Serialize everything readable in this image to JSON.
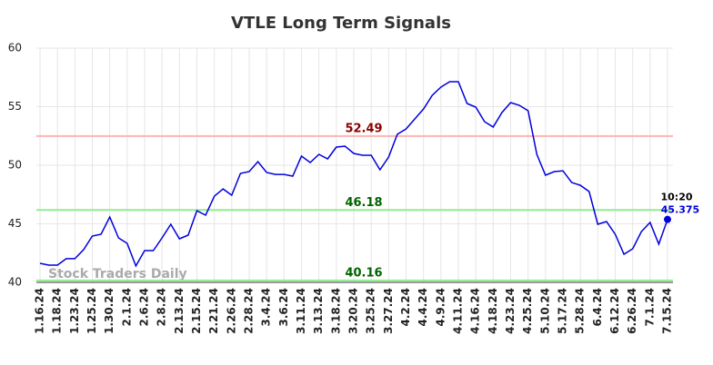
{
  "chart_data": {
    "type": "line",
    "title": "VTLE Long Term Signals",
    "categories": [
      "1.16.24",
      null,
      "1.18.24",
      null,
      "1.23.24",
      null,
      "1.25.24",
      null,
      "1.30.24",
      null,
      "2.1.24",
      null,
      "2.6.24",
      null,
      "2.8.24",
      null,
      "2.13.24",
      null,
      "2.15.24",
      null,
      "2.21.24",
      null,
      "2.26.24",
      null,
      "2.28.24",
      null,
      "3.4.24",
      null,
      "3.6.24",
      null,
      "3.11.24",
      null,
      "3.13.24",
      null,
      "3.18.24",
      null,
      "3.20.24",
      null,
      "3.25.24",
      null,
      "3.27.24",
      null,
      "4.2.24",
      null,
      "4.4.24",
      null,
      "4.9.24",
      null,
      "4.11.24",
      null,
      "4.16.24",
      null,
      "4.18.24",
      null,
      "4.23.24",
      null,
      "4.25.24",
      null,
      "5.10.24",
      null,
      "5.17.24",
      null,
      "5.28.24",
      null,
      "6.4.24",
      null,
      "6.12.24",
      null,
      "6.26.24",
      null,
      "7.1.24",
      null,
      "7.15.24"
    ],
    "values": [
      41.63,
      41.47,
      41.47,
      42.02,
      42.02,
      42.79,
      43.95,
      44.11,
      45.58,
      43.8,
      43.33,
      41.4,
      42.71,
      42.71,
      43.8,
      44.96,
      43.72,
      44.03,
      46.12,
      45.74,
      47.36,
      47.98,
      47.44,
      49.3,
      49.46,
      50.31,
      49.38,
      49.22,
      49.22,
      49.07,
      50.78,
      50.23,
      50.93,
      50.54,
      51.55,
      51.63,
      51.01,
      50.85,
      50.85,
      49.61,
      50.7,
      52.64,
      53.1,
      53.95,
      54.81,
      55.97,
      56.67,
      57.13,
      57.13,
      55.27,
      54.96,
      53.72,
      53.26,
      54.5,
      55.35,
      55.12,
      54.65,
      50.93,
      49.15,
      49.46,
      49.53,
      48.53,
      48.29,
      47.75,
      44.96,
      45.19,
      44.11,
      42.4,
      42.87,
      44.34,
      45.12,
      43.26,
      45.375
    ],
    "color": "#0000dd",
    "ylim": [
      40,
      60
    ],
    "yticks": [
      40,
      45,
      50,
      55,
      60
    ],
    "grid": true,
    "hlines": [
      {
        "value": 52.49,
        "color": "#ffb3b3",
        "label_color": "#8b0000"
      },
      {
        "value": 46.18,
        "color": "#90ee90",
        "label_color": "#006400"
      },
      {
        "value": 40.16,
        "color": "#90ee90",
        "label_color": "#006400"
      }
    ],
    "last_label": "10:20",
    "watermark": "Stock Traders Daily"
  }
}
